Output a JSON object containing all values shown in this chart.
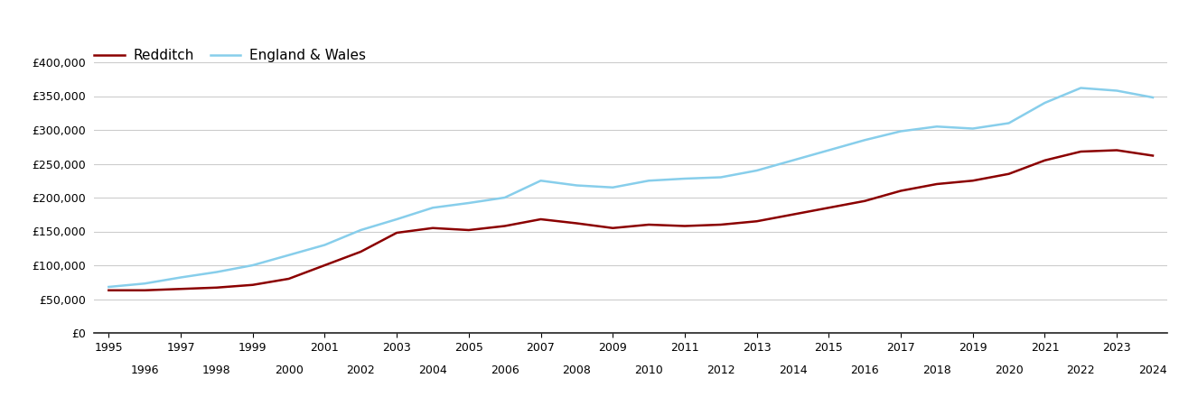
{
  "redditch_years": [
    1995,
    1996,
    1997,
    1998,
    1999,
    2000,
    2001,
    2002,
    2003,
    2004,
    2005,
    2006,
    2007,
    2008,
    2009,
    2010,
    2011,
    2012,
    2013,
    2014,
    2015,
    2016,
    2017,
    2018,
    2019,
    2020,
    2021,
    2022,
    2023,
    2024
  ],
  "redditch_values": [
    63000,
    63000,
    65000,
    67000,
    71000,
    80000,
    100000,
    120000,
    148000,
    155000,
    152000,
    158000,
    168000,
    162000,
    155000,
    160000,
    158000,
    160000,
    165000,
    175000,
    185000,
    195000,
    210000,
    220000,
    225000,
    235000,
    255000,
    268000,
    270000,
    262000
  ],
  "ew_years": [
    1995,
    1996,
    1997,
    1998,
    1999,
    2000,
    2001,
    2002,
    2003,
    2004,
    2005,
    2006,
    2007,
    2008,
    2009,
    2010,
    2011,
    2012,
    2013,
    2014,
    2015,
    2016,
    2017,
    2018,
    2019,
    2020,
    2021,
    2022,
    2023,
    2024
  ],
  "ew_values": [
    68000,
    73000,
    82000,
    90000,
    100000,
    115000,
    130000,
    152000,
    168000,
    185000,
    192000,
    200000,
    225000,
    218000,
    215000,
    225000,
    228000,
    230000,
    240000,
    255000,
    270000,
    285000,
    298000,
    305000,
    302000,
    310000,
    340000,
    362000,
    358000,
    348000
  ],
  "redditch_color": "#8b0000",
  "ew_color": "#87ceeb",
  "line_width": 1.8,
  "ylabel_values": [
    0,
    50000,
    100000,
    150000,
    200000,
    250000,
    300000,
    350000,
    400000
  ],
  "ylim": [
    0,
    420000
  ],
  "xlim_min": 1994.6,
  "xlim_max": 2024.4,
  "bg_color": "#ffffff",
  "grid_color": "#cccccc",
  "legend_redditch": "Redditch",
  "legend_ew": "England & Wales",
  "tick_fontsize": 9,
  "legend_fontsize": 11
}
